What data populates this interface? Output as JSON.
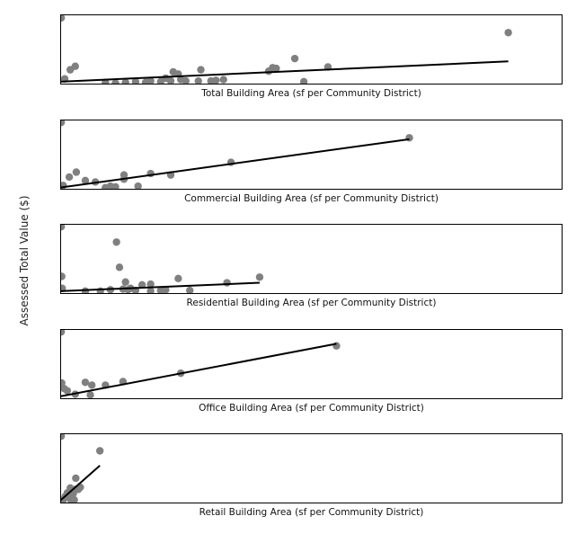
{
  "chart_data": {
    "type": "scatter",
    "ylabel": "Assessed Total Value ($)",
    "point_color": "#808080",
    "line_color": "#000000",
    "note": "Axis ticks are hidden in the original; values are given in normalized plot units (0–1 of each panel's x and y range).",
    "panels": [
      {
        "xlabel": "Total Building Area (sf per Community District)",
        "xlim": [
          0,
          1
        ],
        "ylim": [
          0,
          1
        ],
        "trend": {
          "x": [
            0.0,
            0.892
          ],
          "y": [
            0.04,
            0.33
          ]
        },
        "points": [
          [
            0.002,
            0.95
          ],
          [
            0.009,
            0.08
          ],
          [
            0.02,
            0.21
          ],
          [
            0.03,
            0.26
          ],
          [
            0.09,
            0.03
          ],
          [
            0.11,
            0.02
          ],
          [
            0.13,
            0.03
          ],
          [
            0.15,
            0.04
          ],
          [
            0.17,
            0.03
          ],
          [
            0.18,
            0.05
          ],
          [
            0.2,
            0.04
          ],
          [
            0.21,
            0.09
          ],
          [
            0.22,
            0.05
          ],
          [
            0.225,
            0.18
          ],
          [
            0.235,
            0.15
          ],
          [
            0.24,
            0.07
          ],
          [
            0.25,
            0.05
          ],
          [
            0.275,
            0.05
          ],
          [
            0.28,
            0.21
          ],
          [
            0.3,
            0.05
          ],
          [
            0.31,
            0.06
          ],
          [
            0.325,
            0.07
          ],
          [
            0.415,
            0.19
          ],
          [
            0.423,
            0.24
          ],
          [
            0.43,
            0.23
          ],
          [
            0.467,
            0.37
          ],
          [
            0.533,
            0.25
          ],
          [
            0.485,
            0.04
          ],
          [
            0.892,
            0.74
          ]
        ]
      },
      {
        "xlabel": "Commercial Building Area (sf per Community District)",
        "xlim": [
          0,
          1
        ],
        "ylim": [
          0,
          1
        ],
        "trend": {
          "x": [
            0.0,
            0.695
          ],
          "y": [
            0.03,
            0.72
          ]
        },
        "points": [
          [
            0.002,
            0.96
          ],
          [
            0.006,
            0.06
          ],
          [
            0.018,
            0.18
          ],
          [
            0.032,
            0.25
          ],
          [
            0.05,
            0.13
          ],
          [
            0.07,
            0.11
          ],
          [
            0.09,
            0.03
          ],
          [
            0.1,
            0.05
          ],
          [
            0.11,
            0.04
          ],
          [
            0.127,
            0.21
          ],
          [
            0.127,
            0.15
          ],
          [
            0.155,
            0.05
          ],
          [
            0.18,
            0.23
          ],
          [
            0.22,
            0.21
          ],
          [
            0.34,
            0.39
          ],
          [
            0.695,
            0.74
          ]
        ]
      },
      {
        "xlabel": "Residential Building Area (sf per Community District)",
        "xlim": [
          0,
          1
        ],
        "ylim": [
          0,
          1
        ],
        "trend": {
          "x": [
            0.0,
            0.397
          ],
          "y": [
            0.04,
            0.16
          ]
        },
        "points": [
          [
            0.002,
            0.96
          ],
          [
            0.003,
            0.25
          ],
          [
            0.004,
            0.08
          ],
          [
            0.05,
            0.04
          ],
          [
            0.08,
            0.04
          ],
          [
            0.1,
            0.06
          ],
          [
            0.112,
            0.74
          ],
          [
            0.118,
            0.38
          ],
          [
            0.125,
            0.07
          ],
          [
            0.13,
            0.17
          ],
          [
            0.135,
            0.06
          ],
          [
            0.14,
            0.08
          ],
          [
            0.15,
            0.05
          ],
          [
            0.163,
            0.13
          ],
          [
            0.18,
            0.14
          ],
          [
            0.18,
            0.04
          ],
          [
            0.2,
            0.05
          ],
          [
            0.21,
            0.06
          ],
          [
            0.235,
            0.22
          ],
          [
            0.258,
            0.05
          ],
          [
            0.332,
            0.16
          ],
          [
            0.397,
            0.24
          ]
        ]
      },
      {
        "xlabel": "Office Building Area (sf per Community District)",
        "xlim": [
          0,
          1
        ],
        "ylim": [
          0,
          1
        ],
        "trend": {
          "x": [
            0.0,
            0.55
          ],
          "y": [
            0.04,
            0.79
          ]
        },
        "points": [
          [
            0.002,
            0.96
          ],
          [
            0.003,
            0.23
          ],
          [
            0.008,
            0.15
          ],
          [
            0.014,
            0.12
          ],
          [
            0.03,
            0.07
          ],
          [
            0.05,
            0.24
          ],
          [
            0.06,
            0.06
          ],
          [
            0.063,
            0.2
          ],
          [
            0.09,
            0.2
          ],
          [
            0.125,
            0.25
          ],
          [
            0.24,
            0.37
          ],
          [
            0.55,
            0.76
          ]
        ]
      },
      {
        "xlabel": "Retail Building Area (sf per Community District)",
        "xlim": [
          0,
          1
        ],
        "ylim": [
          0,
          1
        ],
        "trend": {
          "x": [
            0.0,
            0.079
          ],
          "y": [
            0.04,
            0.54
          ]
        },
        "points": [
          [
            0.002,
            0.96
          ],
          [
            0.006,
            0.05
          ],
          [
            0.01,
            0.1
          ],
          [
            0.014,
            0.15
          ],
          [
            0.018,
            0.08
          ],
          [
            0.02,
            0.22
          ],
          [
            0.022,
            0.04
          ],
          [
            0.026,
            0.14
          ],
          [
            0.028,
            0.05
          ],
          [
            0.03,
            0.2
          ],
          [
            0.031,
            0.36
          ],
          [
            0.036,
            0.2
          ],
          [
            0.04,
            0.23
          ],
          [
            0.079,
            0.75
          ]
        ]
      }
    ]
  }
}
